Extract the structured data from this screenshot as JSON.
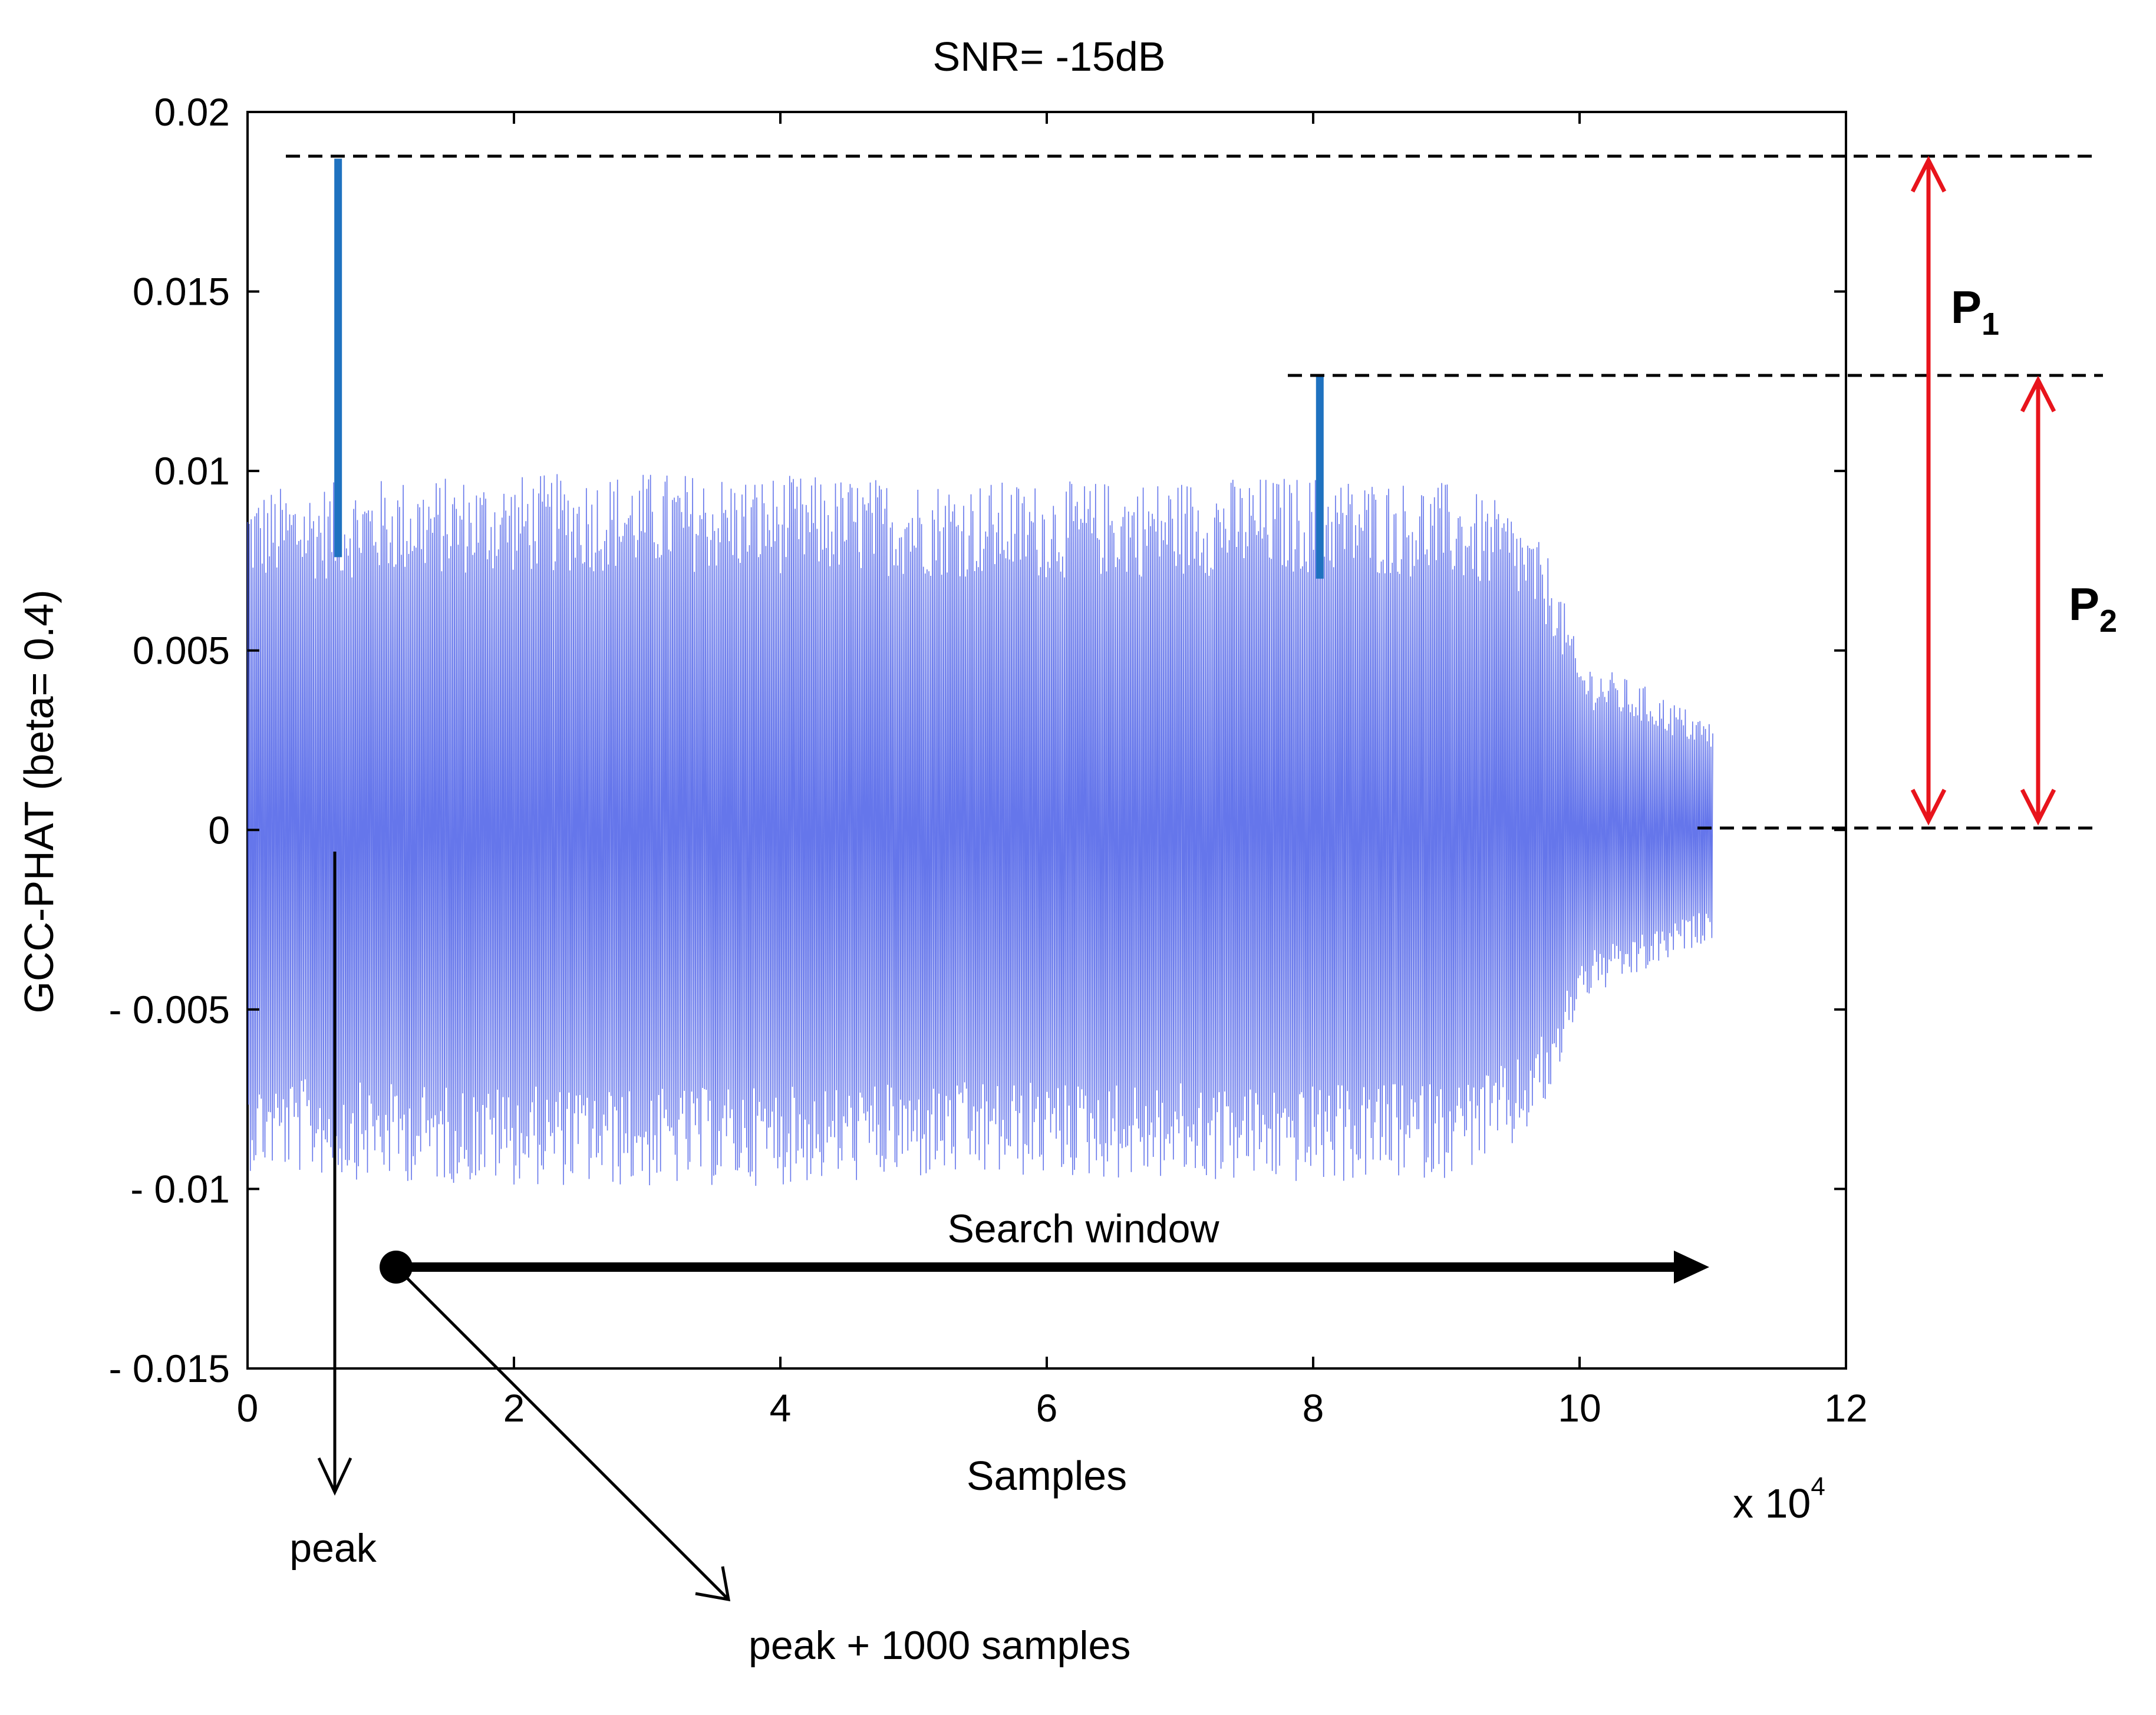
{
  "chart_data": {
    "type": "line",
    "title": "SNR= -15dB",
    "xlabel": "Samples",
    "ylabel": "GCC-PHAT (beta= 0.4)",
    "x_multiplier_base": "x 10",
    "x_multiplier_exp": "4",
    "xlim": [
      0,
      12
    ],
    "ylim": [
      -0.015,
      0.02
    ],
    "xticks": [
      0,
      2,
      4,
      6,
      8,
      10,
      12
    ],
    "xtick_labels": [
      "0",
      "2",
      "4",
      "6",
      "8",
      "10",
      "12"
    ],
    "yticks": [
      -0.015,
      -0.01,
      -0.005,
      0,
      0.005,
      0.01,
      0.015,
      0.02
    ],
    "ytick_labels": [
      "- 0.015",
      "- 0.01",
      "- 0.005",
      "0",
      "0.005",
      "0.01",
      "0.015",
      "0.02"
    ],
    "series": [
      {
        "name": "GCC-PHAT",
        "color": "#4a5ee8",
        "x_range": [
          0,
          11.0
        ],
        "envelope_x": [
          0,
          1,
          2,
          3,
          4,
          5,
          6,
          7,
          8,
          9,
          9.5,
          9.8,
          10.0,
          10.5,
          11.0
        ],
        "envelope_amp": [
          0.0095,
          0.0098,
          0.0099,
          0.01,
          0.0099,
          0.0098,
          0.0097,
          0.0098,
          0.0099,
          0.0097,
          0.009,
          0.0075,
          0.0048,
          0.004,
          0.003
        ]
      },
      {
        "name": "peaks",
        "color": "#1f72c0",
        "points": [
          {
            "x": 0.68,
            "y_top": 0.0187,
            "y_bottom": 0.0076
          },
          {
            "x": 8.05,
            "y_top": 0.0127,
            "y_bottom": 0.007
          }
        ]
      }
    ],
    "reference_lines": {
      "p1_level": 0.0187,
      "p2_level": 0.0126,
      "zero_level": 0
    },
    "annotations": {
      "p1_label": "P",
      "p1_sub": "1",
      "p2_label": "P",
      "p2_sub": "2",
      "search_window": "Search window",
      "search_window_x": [
        1.1,
        11.0
      ],
      "search_window_y": -0.0122,
      "peak": "peak",
      "peak_plus": "peak + 1000 samples"
    },
    "colors": {
      "signal": "#4a5ee8",
      "peak": "#1f72c0",
      "arrow_red": "#e8141c",
      "black": "#000000"
    }
  }
}
